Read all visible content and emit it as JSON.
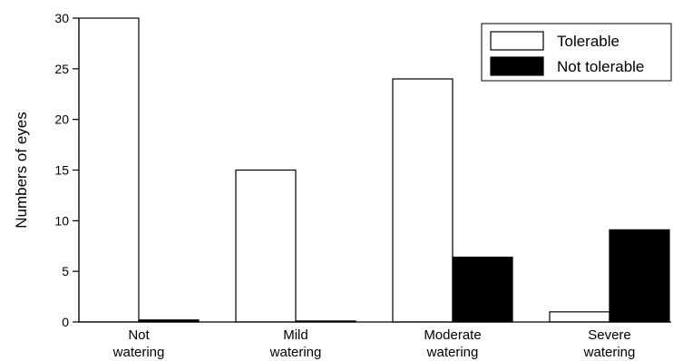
{
  "chart_data": {
    "type": "bar",
    "categories": [
      [
        "Not",
        "watering"
      ],
      [
        "Mild",
        "watering"
      ],
      [
        "Moderate",
        "watering"
      ],
      [
        "Severe",
        "watering"
      ]
    ],
    "series": [
      {
        "name": "Tolerable",
        "color": "#ffffff",
        "values": [
          30,
          15,
          24,
          1
        ]
      },
      {
        "name": "Not tolerable",
        "color": "#000000",
        "values": [
          0.2,
          0.1,
          6.4,
          9.1
        ]
      }
    ],
    "xlabel": "",
    "ylabel": "Numbers of eyes",
    "ylim": [
      0,
      30
    ],
    "yticks": [
      0,
      5,
      10,
      15,
      20,
      25,
      30
    ],
    "grid": false,
    "legend_position": "top-right"
  }
}
